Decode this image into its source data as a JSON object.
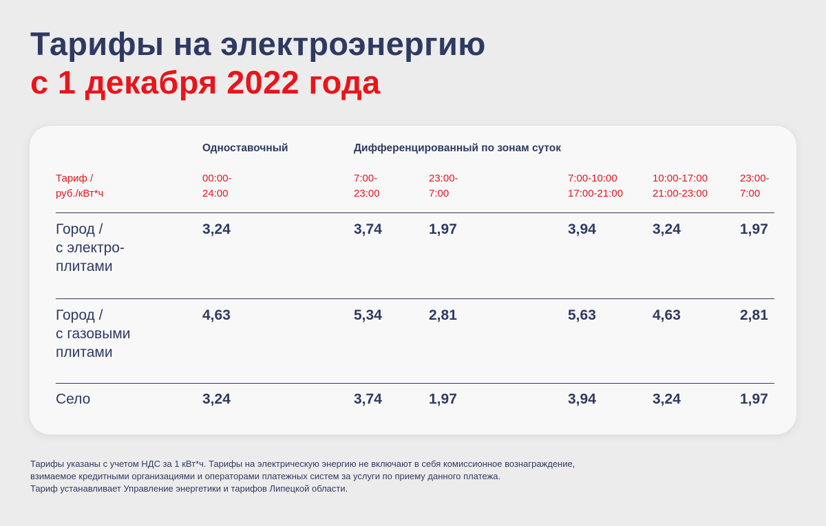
{
  "title": {
    "line1": "Тарифы на электроэнергию",
    "line2": "с 1 декабря 2022 года"
  },
  "table": {
    "group_headers": {
      "single": "Одноставочный",
      "differentiated": "Дифференцированный по зонам суток"
    },
    "unit_label": "Тариф /\nруб./кВт*ч",
    "time_headers": [
      "00:00-\n24:00",
      "7:00-\n23:00",
      "23:00-\n7:00",
      "7:00-10:00\n17:00-21:00",
      "10:00-17:00\n21:00-23:00",
      "23:00-\n7:00"
    ],
    "rows": [
      {
        "label": "Город /\nс электро-\nплитами",
        "values": [
          "3,24",
          "3,74",
          "1,97",
          "3,94",
          "3,24",
          "1,97"
        ]
      },
      {
        "label": "Город /\nс газовыми\nплитами",
        "values": [
          "4,63",
          "5,34",
          "2,81",
          "5,63",
          "4,63",
          "2,81"
        ]
      },
      {
        "label": "Село",
        "values": [
          "3,24",
          "3,74",
          "1,97",
          "3,94",
          "3,24",
          "1,97"
        ]
      }
    ]
  },
  "footnote": {
    "line1": "Тарифы указаны с учетом НДС за 1 кВт*ч. Тарифы на электрическую энергию не включают в себя комиссионное вознаграждение,",
    "line2": "взимаемое кредитными организациями и операторами платежных систем за услуги по приему данного платежа.",
    "line3": "Тариф устанавливает Управление энергетики и тарифов Липецкой области."
  },
  "colors": {
    "navy": "#2f3a63",
    "red": "#e8151b",
    "background": "#ececec",
    "card": "#f8f8f8"
  }
}
